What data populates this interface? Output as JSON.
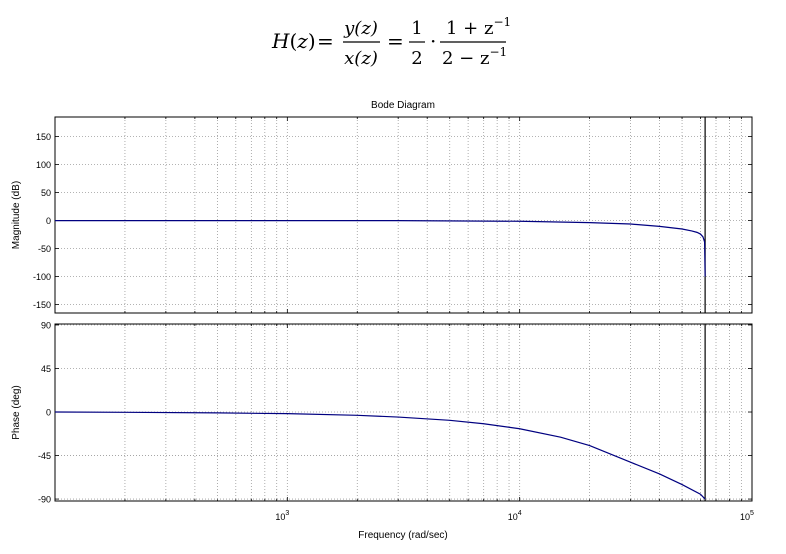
{
  "equation": {
    "lhs": "H",
    "arg": "z",
    "num": "y(z)",
    "den": "x(z)",
    "half_num": "1",
    "half_den": "2",
    "frac_num": "1 + z",
    "frac_den": "2 − z",
    "exponent": "−1"
  },
  "chart_data": {
    "type": "line",
    "title": "Bode Diagram",
    "xlabel": "Frequency  (rad/sec)",
    "xscale": "log",
    "xlim": [
      100,
      100000
    ],
    "x_ticks": [
      {
        "base": "10",
        "exp": "3",
        "value": 1000
      },
      {
        "base": "10",
        "exp": "4",
        "value": 10000
      },
      {
        "base": "10",
        "exp": "5",
        "value": 100000
      }
    ],
    "grid": true,
    "nyquist_frequency": 62832,
    "panels": [
      {
        "name": "magnitude",
        "ylabel": "Magnitude (dB)",
        "ylim": [
          -165,
          185
        ],
        "yticks": [
          150,
          100,
          50,
          0,
          -50,
          -100,
          -150
        ],
        "series": [
          {
            "color": "#000080",
            "x": [
              100,
              300,
              1000,
              3000,
              10000,
              20000,
              30000,
              40000,
              50000,
              55000,
              58000,
              60000,
              61500,
              62500,
              62832
            ],
            "y": [
              0.0,
              0.0,
              0.0,
              -0.1,
              -1.2,
              -3.6,
              -6.1,
              -10.3,
              -15.0,
              -18.5,
              -21.0,
              -24.0,
              -29.0,
              -38.0,
              -100.0
            ]
          }
        ]
      },
      {
        "name": "phase",
        "ylabel": "Phase (deg)",
        "ylim": [
          -92,
          91
        ],
        "yticks": [
          90,
          45,
          0,
          -45,
          -90
        ],
        "series": [
          {
            "color": "#000080",
            "x": [
              100,
              200,
              500,
              1000,
              2000,
              3000,
              5000,
              7000,
              10000,
              15000,
              20000,
              30000,
              40000,
              50000,
              60000,
              62832
            ],
            "y": [
              0.0,
              -0.3,
              -0.9,
              -1.7,
              -3.4,
              -5.2,
              -8.6,
              -12.1,
              -17.3,
              -26.0,
              -34.7,
              -51.9,
              -64.0,
              -75.0,
              -85.0,
              -90.0
            ]
          }
        ]
      }
    ]
  }
}
